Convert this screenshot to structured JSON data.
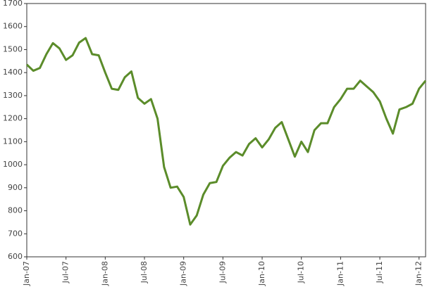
{
  "chart_data": {
    "type": "line",
    "categories": [
      "Jan-07",
      null,
      null,
      null,
      null,
      null,
      "Jul-07",
      null,
      null,
      null,
      null,
      null,
      "Jan-08",
      null,
      null,
      null,
      null,
      null,
      "Jul-08",
      null,
      null,
      null,
      null,
      null,
      "Jan-09",
      null,
      null,
      null,
      null,
      null,
      "Jul-09",
      null,
      null,
      null,
      null,
      null,
      "Jan-10",
      null,
      null,
      null,
      null,
      null,
      "Jul-10",
      null,
      null,
      null,
      null,
      null,
      "Jan-11",
      null,
      null,
      null,
      null,
      null,
      "Jul-11",
      null,
      null,
      null,
      null,
      null,
      "Jan-12",
      null
    ],
    "series": [
      {
        "color": "#5b8c2a",
        "values": [
          1435,
          1408,
          1420,
          1480,
          1528,
          1505,
          1455,
          1475,
          1530,
          1550,
          1480,
          1475,
          1400,
          1330,
          1325,
          1380,
          1405,
          1290,
          1265,
          1285,
          1200,
          990,
          900,
          905,
          860,
          740,
          780,
          870,
          920,
          925,
          995,
          1030,
          1055,
          1040,
          1090,
          1115,
          1075,
          1110,
          1160,
          1185,
          1110,
          1035,
          1100,
          1055,
          1150,
          1180,
          1180,
          1250,
          1285,
          1330,
          1330,
          1365,
          1340,
          1315,
          1275,
          1200,
          1135,
          1240,
          1250,
          1265,
          1330,
          1365
        ]
      }
    ],
    "ylim": [
      600,
      1700
    ],
    "yticks": [
      600,
      700,
      800,
      900,
      1000,
      1100,
      1200,
      1300,
      1400,
      1500,
      1600,
      1700
    ],
    "grid": false
  }
}
